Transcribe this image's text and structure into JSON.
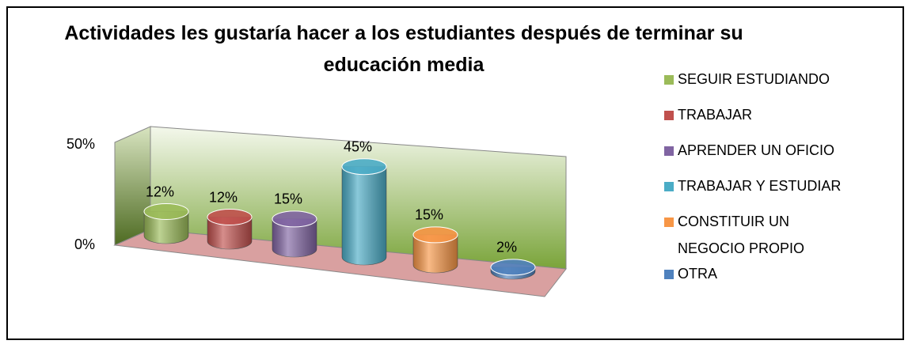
{
  "chart_data": {
    "type": "bar3d",
    "title": "Actividades les gustaría hacer a los estudiantes después de terminar su educación media",
    "ylim": [
      0,
      50
    ],
    "yticks": [
      {
        "value": 0,
        "label": "0%"
      },
      {
        "value": 50,
        "label": "50%"
      }
    ],
    "legend": "right",
    "series": [
      {
        "name": "SEGUIR ESTUDIANDO",
        "color": "#9bbb59",
        "values": [
          12
        ],
        "value_labels": [
          "12%"
        ]
      },
      {
        "name": "TRABAJAR",
        "color": "#c0504d",
        "values": [
          12
        ],
        "value_labels": [
          "12%"
        ]
      },
      {
        "name": "APRENDER UN OFICIO",
        "color": "#8064a2",
        "values": [
          15
        ],
        "value_labels": [
          "15%"
        ]
      },
      {
        "name": "TRABAJAR Y ESTUDIAR",
        "color": "#4bacc6",
        "values": [
          45
        ],
        "value_labels": [
          "45%"
        ]
      },
      {
        "name": "CONSTITUIR UN NEGOCIO PROPIO",
        "color": "#f79646",
        "values": [
          15
        ],
        "value_labels": [
          "15%"
        ]
      },
      {
        "name": "OTRA",
        "color": "#4f81bd",
        "values": [
          2
        ],
        "value_labels": [
          "2%"
        ]
      }
    ]
  }
}
